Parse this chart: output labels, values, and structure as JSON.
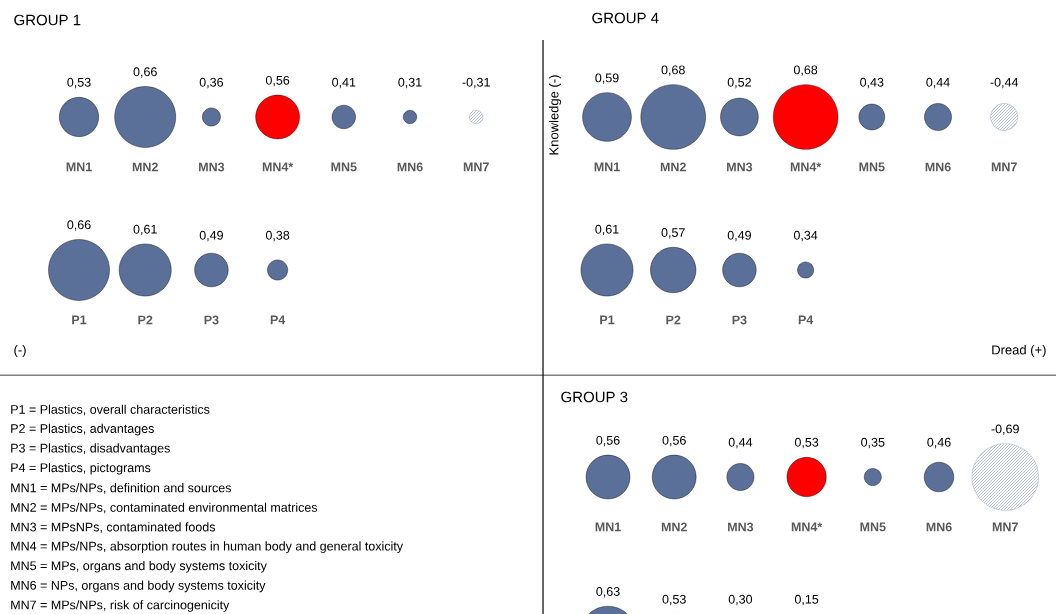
{
  "chart_data": [
    {
      "type": "other",
      "title": "GROUP 1",
      "categories": [
        "MN1",
        "MN2",
        "MN3",
        "MN4*",
        "MN5",
        "MN6",
        "MN7"
      ],
      "values": [
        0.53,
        0.66,
        0.36,
        0.56,
        0.41,
        0.31,
        -0.31
      ],
      "value_labels": [
        "0,53",
        "0,66",
        "0,36",
        "0,56",
        "0,41",
        "0,31",
        "-0,31"
      ],
      "colors": [
        "#5a7099",
        "#5a7099",
        "#5a7099",
        "#ff0000",
        "#5a7099",
        "#5a7099",
        "#5a7099"
      ]
    },
    {
      "type": "other",
      "categories": [
        "P1",
        "P2",
        "P3",
        "P4"
      ],
      "values": [
        0.66,
        0.61,
        0.49,
        0.38
      ],
      "value_labels": [
        "0,66",
        "0,61",
        "0,49",
        "0,38"
      ],
      "colors": [
        "#5a7099",
        "#5a7099",
        "#5a7099",
        "#5a7099"
      ]
    },
    {
      "type": "other",
      "title": "GROUP 4",
      "categories": [
        "MN1",
        "MN2",
        "MN3",
        "MN4*",
        "MN5",
        "MN6",
        "MN7"
      ],
      "values": [
        0.59,
        0.68,
        0.52,
        0.68,
        0.43,
        0.44,
        -0.44
      ],
      "value_labels": [
        "0,59",
        "0,68",
        "0,52",
        "0,68",
        "0,43",
        "0,44",
        "-0,44"
      ],
      "colors": [
        "#5a7099",
        "#5a7099",
        "#5a7099",
        "#ff0000",
        "#5a7099",
        "#5a7099",
        "#5a7099"
      ]
    },
    {
      "type": "other",
      "categories": [
        "P1",
        "P2",
        "P3",
        "P4"
      ],
      "values": [
        0.61,
        0.57,
        0.49,
        0.34
      ],
      "value_labels": [
        "0,61",
        "0,57",
        "0,49",
        "0,34"
      ],
      "colors": [
        "#5a7099",
        "#5a7099",
        "#5a7099",
        "#5a7099"
      ]
    },
    {
      "type": "other",
      "title": "GROUP 3",
      "categories": [
        "MN1",
        "MN2",
        "MN3",
        "MN4*",
        "MN5",
        "MN6",
        "MN7"
      ],
      "values": [
        0.56,
        0.56,
        0.44,
        0.53,
        0.35,
        0.46,
        -0.69
      ],
      "value_labels": [
        "0,56",
        "0,56",
        "0,44",
        "0,53",
        "0,35",
        "0,46",
        "-0,69"
      ],
      "colors": [
        "#5a7099",
        "#5a7099",
        "#5a7099",
        "#ff0000",
        "#5a7099",
        "#5a7099",
        "#5a7099"
      ]
    },
    {
      "type": "other",
      "categories": [
        null,
        null,
        null,
        null
      ],
      "values": [
        0.63,
        0.53,
        0.3,
        0.15
      ],
      "value_labels": [
        "0,63",
        "0,53",
        "0,30",
        "0,15"
      ],
      "colors": [
        "#5a7099",
        "#5a7099",
        "#5a7099",
        "#5a7099"
      ]
    },
    {
      "type": "other",
      "annotations": [
        "Knowledge (-)",
        "(-)",
        "Dread (+)",
        "P1 = Plastics, overall characteristics",
        "P2 = Plastics, advantages",
        "P3 = Plastics, disadvantages",
        "P4 = Plastics, pictograms",
        "MN1 = MPs/NPs, definition and sources",
        "MN2 = MPs/NPs, contaminated environmental matrices",
        "MN3 = MPsNPs, contaminated foods",
        "MN4 = MPs/NPs, absorption routes in human body and general toxicity",
        "MN5 = MPs, organs and body systems toxicity",
        "MN6 = NPs, organs and body systems toxicity",
        "MN7 = MPs/NPs, risk of carcinogenicity"
      ]
    }
  ]
}
